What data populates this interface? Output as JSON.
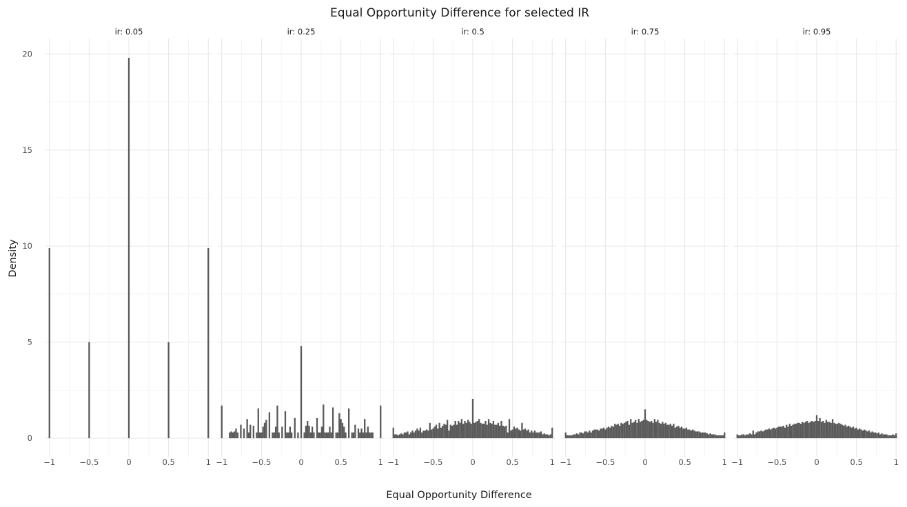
{
  "chart_data": {
    "type": "bar",
    "title": "Equal Opportunity Difference for selected IR",
    "xlabel": "Equal Opportunity Difference",
    "ylabel": "Density",
    "xlim": [
      -1.05,
      1.05
    ],
    "ylim": [
      -1.0,
      20.8
    ],
    "x_ticks": [
      -1,
      -0.5,
      0,
      0.5,
      1
    ],
    "x_tick_labels": [
      "−1",
      "−0.5",
      "0",
      "0.5",
      "1"
    ],
    "y_ticks": [
      0,
      5,
      10,
      15,
      20
    ],
    "y_tick_labels": [
      "0",
      "5",
      "10",
      "15",
      "20"
    ],
    "bar_width": 0.02,
    "bar_color": "#595959",
    "grid": true,
    "legend": "none",
    "panels": [
      {
        "label": "ir: 0.05",
        "x": [
          -1.0,
          -0.5,
          0.0,
          0.5,
          1.0
        ],
        "values": [
          9.9,
          5.0,
          19.8,
          5.0,
          9.9
        ]
      },
      {
        "label": "ir: 0.25",
        "x": [
          -1.0,
          -0.9,
          -0.88,
          -0.86,
          -0.84,
          -0.82,
          -0.8,
          -0.76,
          -0.72,
          -0.68,
          -0.66,
          -0.64,
          -0.6,
          -0.56,
          -0.54,
          -0.52,
          -0.5,
          -0.48,
          -0.46,
          -0.44,
          -0.4,
          -0.36,
          -0.34,
          -0.32,
          -0.3,
          -0.28,
          -0.24,
          -0.2,
          -0.18,
          -0.16,
          -0.14,
          -0.12,
          -0.08,
          -0.04,
          0.0,
          0.04,
          0.06,
          0.08,
          0.1,
          0.12,
          0.14,
          0.16,
          0.2,
          0.22,
          0.24,
          0.26,
          0.28,
          0.3,
          0.32,
          0.34,
          0.36,
          0.38,
          0.4,
          0.44,
          0.46,
          0.48,
          0.5,
          0.52,
          0.54,
          0.56,
          0.6,
          0.64,
          0.66,
          0.68,
          0.72,
          0.74,
          0.76,
          0.78,
          0.8,
          0.82,
          0.84,
          0.86,
          0.88,
          0.9,
          1.0
        ],
        "values": [
          1.7,
          0.3,
          0.35,
          0.3,
          0.35,
          0.5,
          0.3,
          0.7,
          0.5,
          1.0,
          0.3,
          0.7,
          0.65,
          0.3,
          1.55,
          0.3,
          0.3,
          0.6,
          0.8,
          0.95,
          1.35,
          0.3,
          0.3,
          0.6,
          1.7,
          0.3,
          0.6,
          1.4,
          0.3,
          0.3,
          0.6,
          0.3,
          1.05,
          0.3,
          4.8,
          0.3,
          0.65,
          0.9,
          0.65,
          0.3,
          0.6,
          0.3,
          1.05,
          0.3,
          0.3,
          0.6,
          1.75,
          0.3,
          0.3,
          0.3,
          0.6,
          0.3,
          1.6,
          0.3,
          0.3,
          1.3,
          1.0,
          0.8,
          0.6,
          0.3,
          1.55,
          0.3,
          0.3,
          0.7,
          0.5,
          0.3,
          0.5,
          0.3,
          1.0,
          0.3,
          0.6,
          0.3,
          0.3,
          0.3,
          1.7
        ]
      },
      {
        "label": "ir: 0.5",
        "values_x_start": -1.0,
        "values_x_step": 0.02,
        "values": [
          0.55,
          0.2,
          0.2,
          0.15,
          0.2,
          0.25,
          0.2,
          0.3,
          0.3,
          0.35,
          0.2,
          0.3,
          0.4,
          0.3,
          0.4,
          0.5,
          0.4,
          0.55,
          0.3,
          0.4,
          0.4,
          0.45,
          0.4,
          0.8,
          0.45,
          0.5,
          0.6,
          0.7,
          0.5,
          0.8,
          0.55,
          0.65,
          0.75,
          0.7,
          0.95,
          0.4,
          0.7,
          0.65,
          0.7,
          0.9,
          0.7,
          0.9,
          0.8,
          1.0,
          0.75,
          0.9,
          0.8,
          0.95,
          0.85,
          0.75,
          2.05,
          0.8,
          0.85,
          0.9,
          1.0,
          0.8,
          0.75,
          0.75,
          0.9,
          0.7,
          1.0,
          0.8,
          0.75,
          0.9,
          0.7,
          0.7,
          0.8,
          0.65,
          0.9,
          0.65,
          0.6,
          0.65,
          0.3,
          1.0,
          0.4,
          0.45,
          0.6,
          0.5,
          0.55,
          0.45,
          0.4,
          0.8,
          0.45,
          0.5,
          0.4,
          0.45,
          0.3,
          0.4,
          0.3,
          0.4,
          0.3,
          0.3,
          0.3,
          0.35,
          0.2,
          0.25,
          0.2,
          0.2,
          0.15,
          0.2,
          0.55
        ]
      },
      {
        "label": "ir: 0.75",
        "values_x_start": -1.0,
        "values_x_step": 0.02,
        "values": [
          0.3,
          0.15,
          0.15,
          0.15,
          0.15,
          0.2,
          0.2,
          0.25,
          0.2,
          0.3,
          0.3,
          0.25,
          0.35,
          0.35,
          0.3,
          0.4,
          0.3,
          0.4,
          0.45,
          0.45,
          0.45,
          0.4,
          0.5,
          0.5,
          0.55,
          0.45,
          0.55,
          0.6,
          0.55,
          0.65,
          0.6,
          0.75,
          0.7,
          0.75,
          0.65,
          0.8,
          0.75,
          0.8,
          0.85,
          0.9,
          0.7,
          1.0,
          0.8,
          0.85,
          0.95,
          0.8,
          1.0,
          0.85,
          0.9,
          0.95,
          1.5,
          0.95,
          0.9,
          0.85,
          0.9,
          0.8,
          1.0,
          0.85,
          0.95,
          0.8,
          0.75,
          0.85,
          0.75,
          0.8,
          0.7,
          0.7,
          0.75,
          0.65,
          0.75,
          0.55,
          0.6,
          0.65,
          0.55,
          0.6,
          0.5,
          0.5,
          0.55,
          0.45,
          0.45,
          0.4,
          0.45,
          0.4,
          0.35,
          0.35,
          0.35,
          0.3,
          0.3,
          0.3,
          0.3,
          0.25,
          0.2,
          0.25,
          0.2,
          0.2,
          0.2,
          0.15,
          0.15,
          0.15,
          0.15,
          0.15,
          0.3
        ]
      },
      {
        "label": "ir: 0.95",
        "values_x_start": -1.0,
        "values_x_step": 0.02,
        "values": [
          0.2,
          0.15,
          0.15,
          0.2,
          0.2,
          0.15,
          0.2,
          0.2,
          0.25,
          0.2,
          0.4,
          0.2,
          0.3,
          0.35,
          0.35,
          0.4,
          0.35,
          0.4,
          0.45,
          0.45,
          0.5,
          0.45,
          0.5,
          0.55,
          0.5,
          0.55,
          0.6,
          0.6,
          0.6,
          0.65,
          0.55,
          0.7,
          0.6,
          0.75,
          0.65,
          0.7,
          0.75,
          0.75,
          0.8,
          0.8,
          0.75,
          0.85,
          0.8,
          0.85,
          0.9,
          0.8,
          0.85,
          0.9,
          0.85,
          0.9,
          1.2,
          0.9,
          1.05,
          0.85,
          0.9,
          0.8,
          0.95,
          0.85,
          0.85,
          0.8,
          1.0,
          0.8,
          0.75,
          0.75,
          0.8,
          0.75,
          0.7,
          0.65,
          0.7,
          0.6,
          0.65,
          0.6,
          0.55,
          0.6,
          0.5,
          0.55,
          0.45,
          0.5,
          0.45,
          0.4,
          0.45,
          0.4,
          0.35,
          0.4,
          0.3,
          0.35,
          0.3,
          0.3,
          0.25,
          0.3,
          0.2,
          0.25,
          0.2,
          0.2,
          0.2,
          0.15,
          0.15,
          0.15,
          0.2,
          0.15,
          0.25
        ]
      }
    ]
  }
}
